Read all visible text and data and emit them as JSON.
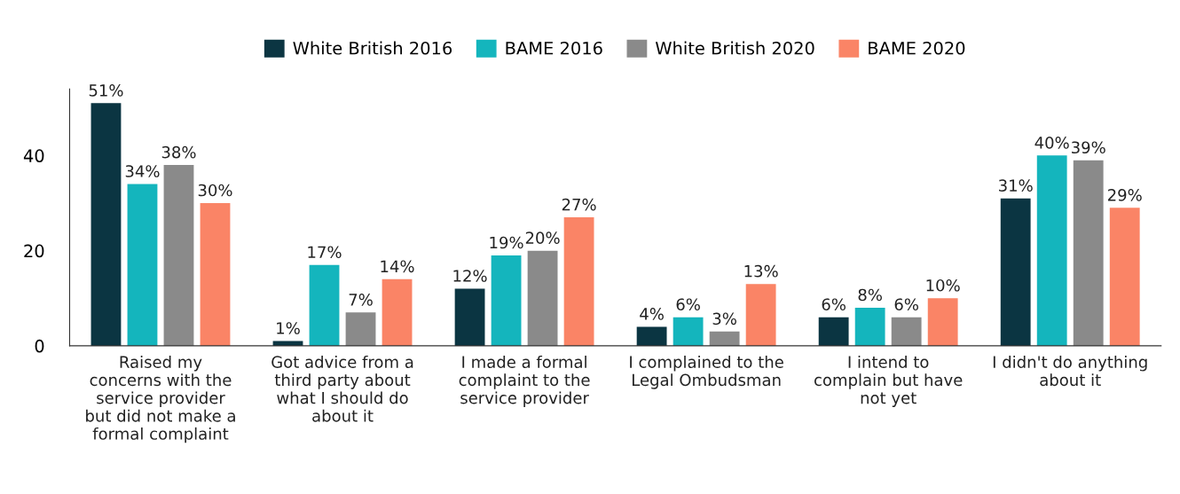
{
  "chart_data": {
    "type": "bar",
    "categories": [
      "Raised my\nconcerns with the\nservice provider\nbut did not make a\nformal complaint",
      "Got advice from a\nthird party about\nwhat I should do\nabout it",
      "I made a formal\ncomplaint to the\nservice provider",
      "I complained to the\nLegal Ombudsman",
      "I intend to\ncomplain but have\nnot yet",
      "I didn't do anything\nabout it"
    ],
    "series": [
      {
        "name": "White British 2016",
        "color": "#0b3542",
        "values": [
          51,
          1,
          12,
          4,
          6,
          31
        ],
        "value_labels": [
          "51%",
          "1%",
          "12%",
          "4%",
          "6%",
          "31%"
        ]
      },
      {
        "name": "BAME 2016",
        "color": "#14b5bd",
        "values": [
          34,
          17,
          19,
          6,
          8,
          40
        ],
        "value_labels": [
          "34%",
          "17%",
          "19%",
          "6%",
          "8%",
          "40%"
        ]
      },
      {
        "name": "White British 2020",
        "color": "#8a8a8a",
        "values": [
          38,
          7,
          20,
          3,
          6,
          39
        ],
        "value_labels": [
          "38%",
          "7%",
          "20%",
          "3%",
          "6%",
          "39%"
        ]
      },
      {
        "name": "BAME 2020",
        "color": "#fa8466",
        "values": [
          30,
          14,
          27,
          13,
          10,
          29
        ],
        "value_labels": [
          "30%",
          "14%",
          "27%",
          "13%",
          "10%",
          "29%"
        ]
      }
    ],
    "ylim": [
      0,
      54
    ],
    "yticks": [
      0,
      20,
      40
    ],
    "grid": false,
    "legend": "top"
  }
}
